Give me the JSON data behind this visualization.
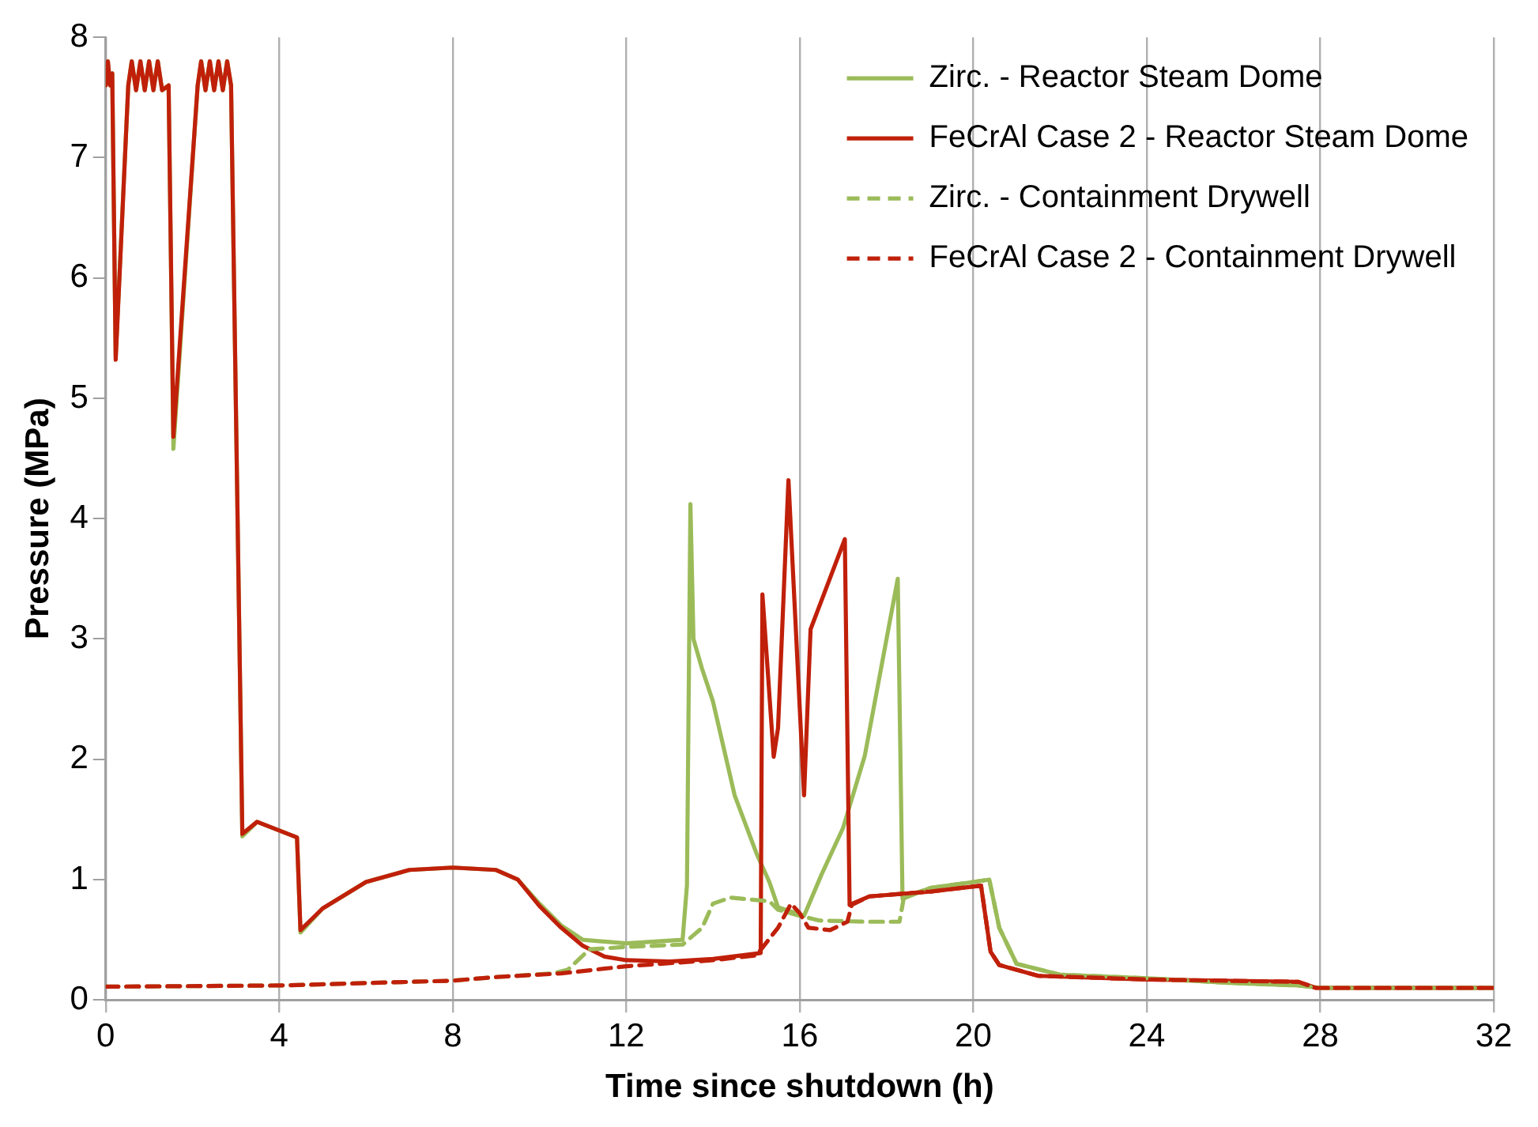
{
  "chart_data": {
    "type": "line",
    "xlabel": "Time since shutdown (h)",
    "ylabel": "Pressure (MPa)",
    "xlim": [
      0,
      32
    ],
    "xticks": [
      0,
      4,
      8,
      12,
      16,
      20,
      24,
      28,
      32
    ],
    "ylim": [
      0,
      8
    ],
    "yticks": [
      0,
      1,
      2,
      3,
      4,
      5,
      6,
      7,
      8
    ],
    "grid": "x",
    "legend": "top right",
    "marker": "none",
    "series": [
      {
        "name": "Zirc. - Reactor Steam Dome",
        "color": "#9bbb59",
        "line_style": "solid",
        "x": [
          0,
          0.05,
          0.1,
          0.15,
          0.23,
          0.52,
          0.6,
          0.7,
          0.8,
          0.9,
          1.0,
          1.1,
          1.2,
          1.3,
          1.45,
          1.56,
          2.12,
          2.2,
          2.3,
          2.4,
          2.5,
          2.6,
          2.7,
          2.8,
          2.89,
          3.15,
          3.49,
          4.41,
          4.49,
          5,
          6,
          7,
          8,
          9,
          9.5,
          10,
          10.5,
          11,
          12,
          13.3,
          13.4,
          13.48,
          13.55,
          13.75,
          14,
          14.5,
          15,
          15.3,
          15.5,
          16.1,
          16.5,
          17,
          17.5,
          18.26,
          18.37,
          19,
          20,
          20.37,
          20.6,
          21,
          22,
          24,
          26,
          27.5,
          28,
          32
        ],
        "values": [
          7.6,
          7.8,
          7.6,
          7.7,
          5.35,
          7.6,
          7.8,
          7.56,
          7.8,
          7.56,
          7.8,
          7.56,
          7.8,
          7.56,
          7.6,
          4.58,
          7.6,
          7.8,
          7.56,
          7.8,
          7.56,
          7.8,
          7.56,
          7.8,
          7.6,
          1.36,
          1.48,
          1.35,
          0.56,
          0.76,
          0.98,
          1.08,
          1.1,
          1.08,
          1.0,
          0.8,
          0.62,
          0.5,
          0.47,
          0.5,
          0.95,
          4.12,
          3.0,
          2.75,
          2.48,
          1.7,
          1.22,
          0.98,
          0.77,
          0.7,
          1.04,
          1.43,
          2.03,
          3.5,
          0.84,
          0.93,
          0.98,
          1.0,
          0.6,
          0.3,
          0.21,
          0.18,
          0.14,
          0.12,
          0.1,
          0.1
        ]
      },
      {
        "name": "FeCrAl Case 2 - Reactor Steam Dome",
        "color": "#c0200a",
        "line_style": "solid",
        "x": [
          0,
          0.05,
          0.1,
          0.15,
          0.23,
          0.52,
          0.6,
          0.7,
          0.8,
          0.9,
          1.0,
          1.1,
          1.2,
          1.3,
          1.45,
          1.56,
          2.12,
          2.2,
          2.3,
          2.4,
          2.5,
          2.6,
          2.7,
          2.8,
          2.89,
          3.15,
          3.49,
          4.41,
          4.49,
          5,
          6,
          7,
          8,
          9,
          9.5,
          10,
          10.5,
          11,
          11.5,
          12,
          13,
          14,
          15.1,
          15.14,
          15.4,
          15.5,
          15.74,
          16.1,
          16.25,
          17.04,
          17.15,
          17.6,
          19,
          20.18,
          20.4,
          20.6,
          21.5,
          24,
          27.5,
          27.9,
          32
        ],
        "values": [
          7.6,
          7.8,
          7.6,
          7.7,
          5.32,
          7.6,
          7.8,
          7.56,
          7.8,
          7.56,
          7.8,
          7.56,
          7.8,
          7.56,
          7.6,
          4.68,
          7.6,
          7.8,
          7.56,
          7.8,
          7.56,
          7.8,
          7.56,
          7.8,
          7.6,
          1.38,
          1.48,
          1.35,
          0.58,
          0.76,
          0.98,
          1.08,
          1.1,
          1.08,
          1.0,
          0.78,
          0.6,
          0.45,
          0.36,
          0.33,
          0.32,
          0.34,
          0.39,
          3.37,
          2.02,
          2.26,
          4.32,
          1.7,
          3.08,
          3.83,
          0.79,
          0.86,
          0.9,
          0.95,
          0.4,
          0.29,
          0.2,
          0.17,
          0.15,
          0.1,
          0.1
        ]
      },
      {
        "name": "Zirc. - Containment Drywell",
        "color": "#9bbb59",
        "line_style": "dashed",
        "x": [
          0,
          4,
          8,
          9,
          10.3,
          10.65,
          11.15,
          12,
          13.3,
          13.75,
          14,
          14.4,
          15.3,
          15.5,
          16,
          16.45,
          17.5,
          18.3,
          18.4,
          19,
          20,
          20.37,
          20.6,
          21,
          22,
          24,
          26,
          27.5,
          28,
          32
        ],
        "values": [
          0.11,
          0.12,
          0.16,
          0.19,
          0.22,
          0.25,
          0.42,
          0.44,
          0.46,
          0.6,
          0.8,
          0.85,
          0.82,
          0.75,
          0.7,
          0.66,
          0.65,
          0.65,
          0.85,
          0.93,
          0.98,
          1.0,
          0.6,
          0.3,
          0.21,
          0.18,
          0.14,
          0.12,
          0.1,
          0.1
        ]
      },
      {
        "name": "FeCrAl Case 2 - Containment Drywell",
        "color": "#c0200a",
        "line_style": "dashed",
        "x": [
          0,
          4,
          8,
          9,
          10.5,
          12,
          14,
          15,
          15.5,
          15.8,
          16,
          16.2,
          16.7,
          17.1,
          17.2,
          17.6,
          19,
          20.18,
          20.4,
          20.6,
          21.5,
          24,
          27.5,
          27.9,
          32
        ],
        "values": [
          0.11,
          0.12,
          0.16,
          0.19,
          0.22,
          0.28,
          0.33,
          0.37,
          0.6,
          0.8,
          0.72,
          0.6,
          0.58,
          0.65,
          0.79,
          0.86,
          0.9,
          0.95,
          0.4,
          0.29,
          0.2,
          0.17,
          0.15,
          0.1,
          0.1
        ]
      }
    ]
  }
}
